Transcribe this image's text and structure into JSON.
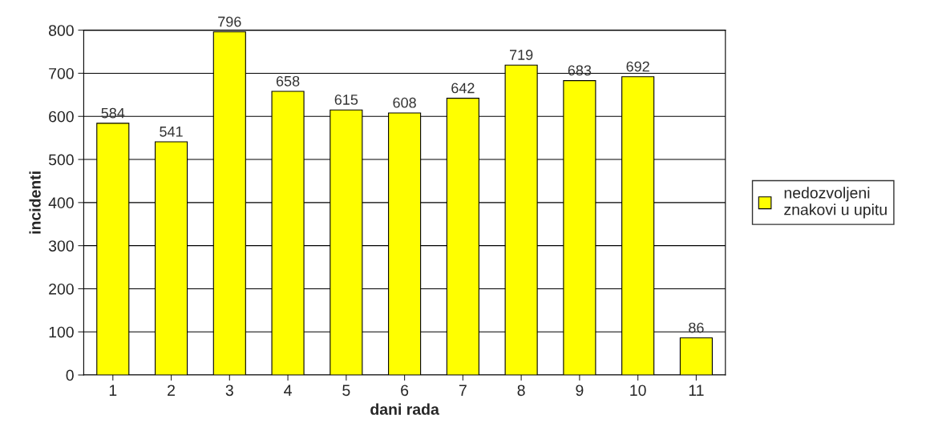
{
  "chart_data": {
    "type": "bar",
    "xlabel": "dani rada",
    "ylabel": "incidenti",
    "categories": [
      "1",
      "2",
      "3",
      "4",
      "5",
      "6",
      "7",
      "8",
      "9",
      "10",
      "11"
    ],
    "series": [
      {
        "name": "nedozvoljeni\nznakovi u upitu",
        "color": "#ffff00",
        "values": [
          584,
          541,
          796,
          658,
          615,
          608,
          642,
          719,
          683,
          692,
          86
        ]
      }
    ],
    "ylim": [
      0,
      800
    ],
    "yticks": [
      0,
      100,
      200,
      300,
      400,
      500,
      600,
      700,
      800
    ],
    "grid": "y",
    "legend": "right",
    "data_labels": true
  }
}
